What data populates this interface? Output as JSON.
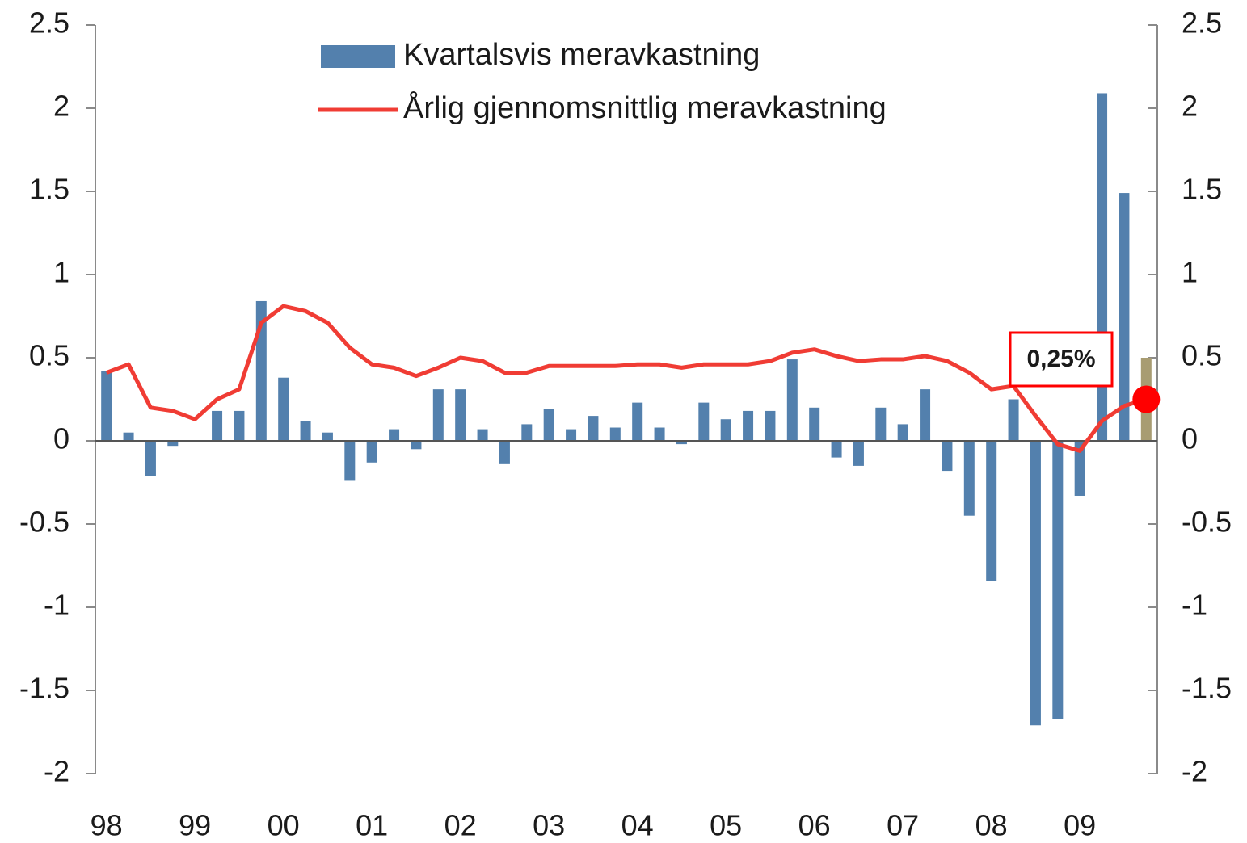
{
  "chart_data": {
    "type": "bar_line",
    "categories": [
      "98",
      null,
      null,
      null,
      "99",
      null,
      null,
      null,
      "00",
      null,
      null,
      null,
      "01",
      null,
      null,
      null,
      "02",
      null,
      null,
      null,
      "03",
      null,
      null,
      null,
      "04",
      null,
      null,
      null,
      "05",
      null,
      null,
      null,
      "06",
      null,
      null,
      null,
      "07",
      null,
      null,
      null,
      "08",
      null,
      null,
      null,
      "09",
      null,
      null,
      null
    ],
    "series": [
      {
        "name": "Kvartalsvis meravkastning",
        "type": "bar",
        "color": "#5380ad",
        "colors": [
          "#5380ad",
          "#5380ad",
          "#5380ad",
          "#5380ad",
          "#5380ad",
          "#5380ad",
          "#5380ad",
          "#5380ad",
          "#5380ad",
          "#5380ad",
          "#5380ad",
          "#5380ad",
          "#5380ad",
          "#5380ad",
          "#5380ad",
          "#5380ad",
          "#5380ad",
          "#5380ad",
          "#5380ad",
          "#5380ad",
          "#5380ad",
          "#5380ad",
          "#5380ad",
          "#5380ad",
          "#5380ad",
          "#5380ad",
          "#5380ad",
          "#5380ad",
          "#5380ad",
          "#5380ad",
          "#5380ad",
          "#5380ad",
          "#5380ad",
          "#5380ad",
          "#5380ad",
          "#5380ad",
          "#5380ad",
          "#5380ad",
          "#5380ad",
          "#5380ad",
          "#5380ad",
          "#5380ad",
          "#5380ad",
          "#5380ad",
          "#5380ad",
          "#5380ad",
          "#5380ad",
          "#a89c72"
        ],
        "values": [
          0.42,
          0.05,
          -0.21,
          -0.03,
          0,
          0.18,
          0.18,
          0.84,
          0.38,
          0.12,
          0.05,
          -0.24,
          -0.13,
          0.07,
          -0.05,
          0.31,
          0.31,
          0.07,
          -0.14,
          0.1,
          0.19,
          0.07,
          0.15,
          0.08,
          0.23,
          0.08,
          -0.02,
          0.23,
          0.13,
          0.18,
          0.18,
          0.49,
          0.2,
          -0.1,
          -0.15,
          0.2,
          0.1,
          0.31,
          -0.18,
          -0.45,
          -0.84,
          0.25,
          -1.71,
          -1.67,
          -0.33,
          2.09,
          1.49,
          0.5
        ]
      },
      {
        "name": "Årlig gjennomsnittlig meravkastning",
        "type": "line",
        "color": "#f03c34",
        "values": [
          0.41,
          0.46,
          0.2,
          0.18,
          0.13,
          0.25,
          0.31,
          0.71,
          0.81,
          0.78,
          0.71,
          0.56,
          0.46,
          0.44,
          0.39,
          0.44,
          0.5,
          0.48,
          0.41,
          0.41,
          0.45,
          0.45,
          0.45,
          0.45,
          0.46,
          0.46,
          0.44,
          0.46,
          0.46,
          0.46,
          0.48,
          0.53,
          0.55,
          0.51,
          0.48,
          0.49,
          0.49,
          0.51,
          0.48,
          0.41,
          0.31,
          0.33,
          0.15,
          -0.02,
          -0.06,
          0.12,
          0.21,
          0.25
        ],
        "value_labels": [
          null,
          null,
          null,
          null,
          null,
          null,
          null,
          null,
          null,
          null,
          null,
          null,
          null,
          null,
          null,
          null,
          null,
          null,
          null,
          null,
          null,
          null,
          null,
          null,
          null,
          null,
          null,
          null,
          null,
          null,
          null,
          null,
          null,
          null,
          null,
          null,
          null,
          null,
          null,
          null,
          null,
          null,
          null,
          null,
          null,
          null,
          null,
          "0,25%"
        ]
      }
    ],
    "ylim": [
      -2,
      2.5
    ],
    "yticks": [
      -2,
      -1.5,
      -1,
      -0.5,
      0,
      0.5,
      1,
      1.5,
      2,
      2.5
    ],
    "y2lim": [
      -2,
      2.5
    ],
    "y2ticks": [
      -2,
      -1.5,
      -1,
      -0.5,
      0,
      0.5,
      1,
      1.5,
      2,
      2.5
    ],
    "legend": "top"
  }
}
